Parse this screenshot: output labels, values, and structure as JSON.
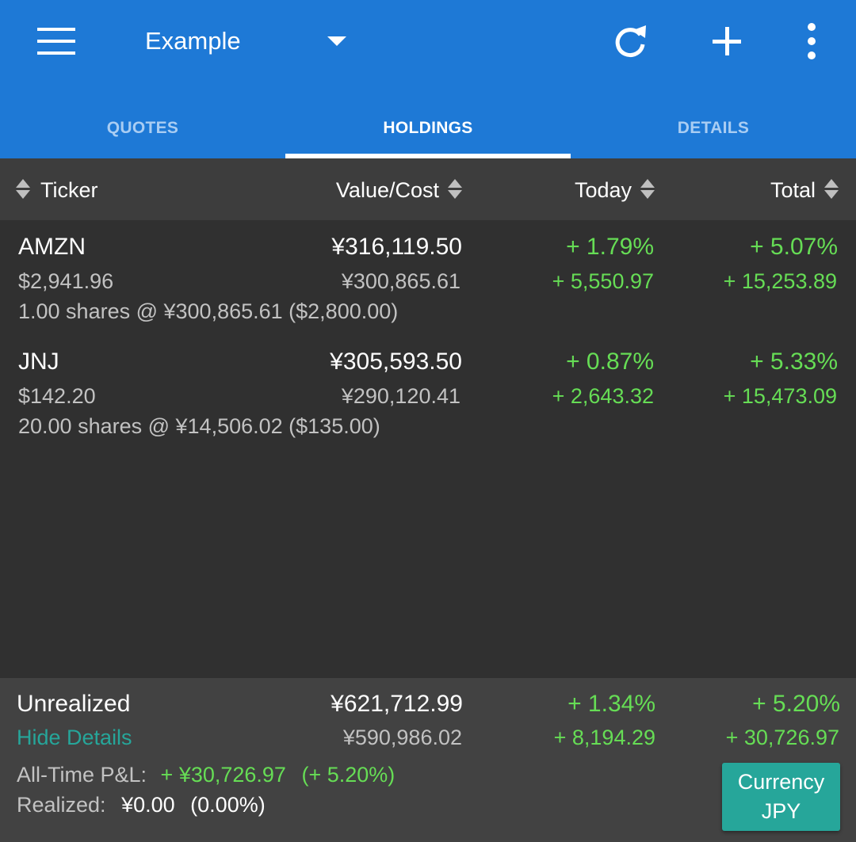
{
  "appbar": {
    "portfolio_name": "Example",
    "icons": [
      "menu-icon",
      "caret-down-icon",
      "refresh-icon",
      "add-icon",
      "more-vert-icon"
    ]
  },
  "tabs": [
    {
      "label": "QUOTES",
      "active": false
    },
    {
      "label": "HOLDINGS",
      "active": true
    },
    {
      "label": "DETAILS",
      "active": false
    }
  ],
  "columns": {
    "ticker": "Ticker",
    "value_cost": "Value/Cost",
    "today": "Today",
    "total": "Total"
  },
  "holdings": [
    {
      "ticker": "AMZN",
      "price": "$2,941.96",
      "shares_line": "1.00 shares @ ¥300,865.61 ($2,800.00)",
      "value": "¥316,119.50",
      "cost": "¥300,865.61",
      "today_pct": "+ 1.79%",
      "today_amt": "+ 5,550.97",
      "total_pct": "+ 5.07%",
      "total_amt": "+ 15,253.89"
    },
    {
      "ticker": "JNJ",
      "price": "$142.20",
      "shares_line": "20.00 shares @ ¥14,506.02 ($135.00)",
      "value": "¥305,593.50",
      "cost": "¥290,120.41",
      "today_pct": "+ 0.87%",
      "today_amt": "+ 2,643.32",
      "total_pct": "+ 5.33%",
      "total_amt": "+ 15,473.09"
    }
  ],
  "summary": {
    "label": "Unrealized",
    "hide_details": "Hide Details",
    "value": "¥621,712.99",
    "cost": "¥590,986.02",
    "today_pct": "+ 1.34%",
    "today_amt": "+ 8,194.29",
    "total_pct": "+ 5.20%",
    "total_amt": "+ 30,726.97",
    "alltime_label": "All-Time P&L:",
    "alltime_value": "+ ¥30,726.97",
    "alltime_pct": "(+ 5.20%)",
    "realized_label": "Realized:",
    "realized_value": "¥0.00",
    "realized_pct": "(0.00%)"
  },
  "currency_button": {
    "line1": "Currency",
    "line2": "JPY"
  },
  "colors": {
    "appbar": "#1e79d6",
    "gain": "#66dd55",
    "accent": "#26a69a",
    "background": "#303030"
  }
}
